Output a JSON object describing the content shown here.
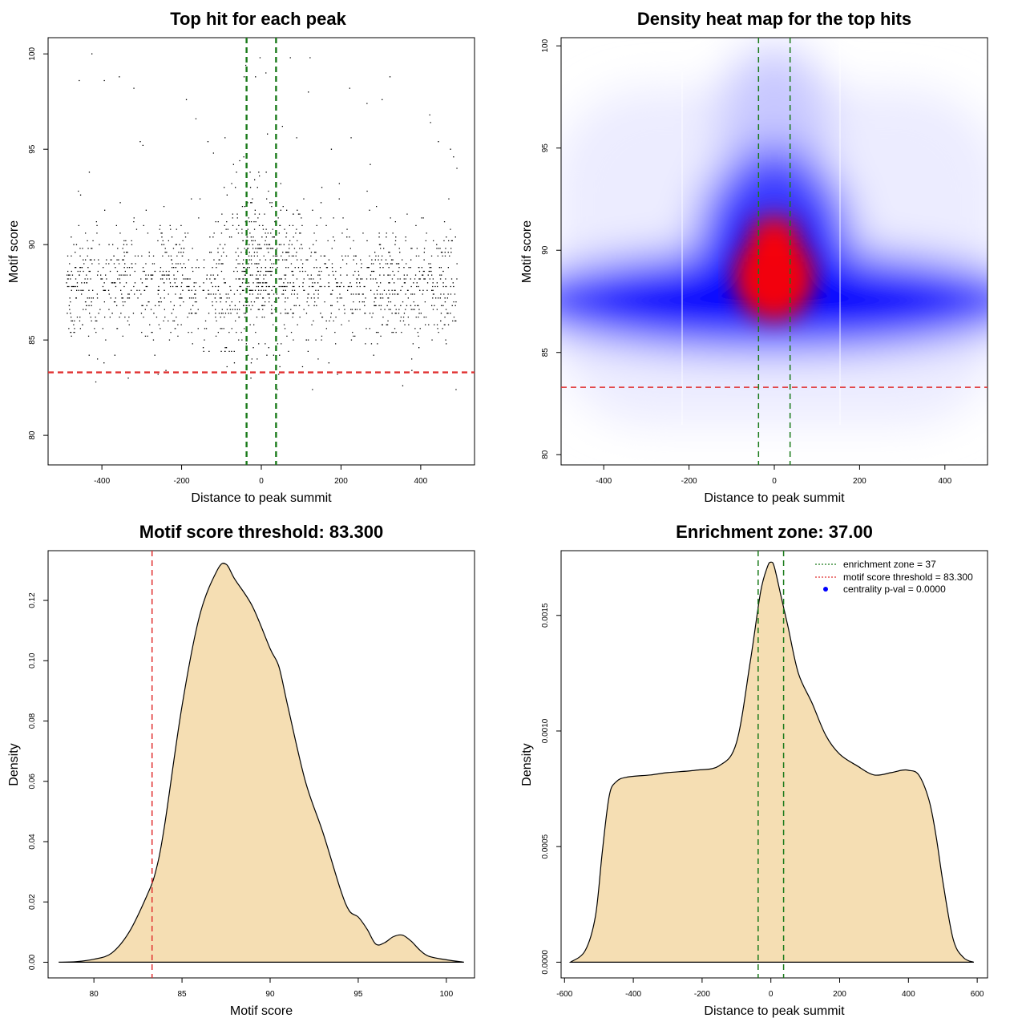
{
  "chart_data": [
    {
      "type": "scatter",
      "title": "Top hit for each peak",
      "xlabel": "Distance to peak summit",
      "ylabel": "Motif score",
      "xlim": [
        -535,
        535
      ],
      "ylim": [
        78.45,
        100.85
      ],
      "xticks": [
        -400,
        -200,
        0,
        200,
        400
      ],
      "xtick_labels": [
        "-400",
        "-200",
        "0",
        "200",
        "400"
      ],
      "yticks": [
        80,
        85,
        90,
        95,
        100
      ],
      "ytick_labels": [
        "80",
        "85",
        "90",
        "95",
        "100"
      ],
      "grid": false,
      "points_description_source": "dense uniform spread from -490 to 490, scores concentrated 85-92, denser near 0",
      "hlines": [
        {
          "y": 83.3,
          "color": "#e03030",
          "style": "dashed"
        }
      ],
      "vlines": [
        {
          "x": -37,
          "color": "#1a7a1a",
          "style": "dashed"
        },
        {
          "x": 37,
          "color": "#1a7a1a",
          "style": "dashed"
        }
      ],
      "marker_color": "#000000"
    },
    {
      "type": "heatmap",
      "title": "Density heat map for the top hits",
      "xlabel": "Distance to peak summit",
      "ylabel": "Motif score",
      "xlim": [
        -500,
        500
      ],
      "ylim": [
        79.5,
        100.4
      ],
      "xticks": [
        -400,
        -200,
        0,
        200,
        400
      ],
      "xtick_labels": [
        "-400",
        "-200",
        "0",
        "200",
        "400"
      ],
      "yticks": [
        80,
        85,
        90,
        95,
        100
      ],
      "ytick_labels": [
        "80",
        "85",
        "90",
        "95",
        "100"
      ],
      "color_scale": [
        "#ffffff",
        "#0000ff",
        "#ff0000"
      ],
      "density_peak": {
        "x": 0,
        "y": 88.5
      },
      "hlines": [
        {
          "y": 83.3,
          "color": "#e03030",
          "style": "dashed"
        }
      ],
      "vlines": [
        {
          "x": -37,
          "color": "#1a7a1a",
          "style": "dashed"
        },
        {
          "x": 37,
          "color": "#1a7a1a",
          "style": "dashed"
        }
      ]
    },
    {
      "type": "area",
      "title": "Motif score threshold: 83.300",
      "xlabel": "Motif score",
      "ylabel": "Density",
      "xlim": [
        77.4,
        101.6
      ],
      "ylim": [
        -0.0052,
        0.1365
      ],
      "xticks": [
        80,
        85,
        90,
        95,
        100
      ],
      "xtick_labels": [
        "80",
        "85",
        "90",
        "95",
        "100"
      ],
      "yticks": [
        0,
        0.02,
        0.04,
        0.06,
        0.08,
        0.1,
        0.12
      ],
      "ytick_labels": [
        "0.00",
        "0.02",
        "0.04",
        "0.06",
        "0.08",
        "0.10",
        "0.12"
      ],
      "fill": "#f5deb3",
      "x": [
        78.0,
        79.0,
        80.0,
        81.0,
        82.0,
        83.0,
        83.5,
        84.0,
        85.0,
        86.0,
        87.0,
        87.5,
        88.0,
        89.0,
        90.0,
        90.5,
        91.0,
        92.0,
        93.0,
        94.0,
        94.5,
        95.0,
        95.5,
        96.0,
        96.5,
        97.0,
        97.5,
        98.0,
        98.5,
        99.0,
        100.0,
        101.0
      ],
      "y": [
        0.0,
        0.0002,
        0.001,
        0.003,
        0.01,
        0.022,
        0.03,
        0.045,
        0.085,
        0.115,
        0.13,
        0.132,
        0.127,
        0.118,
        0.104,
        0.098,
        0.085,
        0.06,
        0.043,
        0.024,
        0.017,
        0.015,
        0.011,
        0.006,
        0.0065,
        0.0085,
        0.009,
        0.007,
        0.004,
        0.002,
        0.0008,
        0.0
      ],
      "vlines": [
        {
          "x": 83.3,
          "color": "#e03030",
          "style": "dashed"
        }
      ]
    },
    {
      "type": "area",
      "title": "Enrichment zone: 37.00",
      "xlabel": "Distance to peak summit",
      "ylabel": "Density",
      "xlim": [
        -610,
        630
      ],
      "ylim": [
        -6.8e-05,
        0.00178
      ],
      "xticks": [
        -600,
        -400,
        -200,
        0,
        200,
        400,
        600
      ],
      "xtick_labels": [
        "-600",
        "-400",
        "-200",
        "0",
        "200",
        "400",
        "600"
      ],
      "yticks": [
        0.0,
        0.0005,
        0.001,
        0.0015
      ],
      "ytick_labels": [
        "0.0000",
        "0.0005",
        "0.0010",
        "0.0015"
      ],
      "fill": "#f5deb3",
      "x": [
        -583,
        -540,
        -510,
        -490,
        -470,
        -450,
        -420,
        -350,
        -300,
        -220,
        -150,
        -100,
        -60,
        -30,
        -10,
        0,
        10,
        30,
        50,
        80,
        120,
        160,
        200,
        250,
        300,
        350,
        380,
        400,
        430,
        460,
        480,
        500,
        530,
        560,
        590
      ],
      "y": [
        0.0,
        5e-05,
        0.0002,
        0.00048,
        0.00072,
        0.00078,
        0.0008,
        0.00081,
        0.00082,
        0.00083,
        0.00085,
        0.00095,
        0.0013,
        0.0016,
        0.00171,
        0.00173,
        0.00171,
        0.00158,
        0.00145,
        0.00125,
        0.00112,
        0.00098,
        0.0009,
        0.00085,
        0.00081,
        0.00082,
        0.00083,
        0.00083,
        0.00081,
        0.0007,
        0.00055,
        0.00035,
        0.0001,
        2e-05,
        0.0
      ],
      "vlines": [
        {
          "x": -37,
          "color": "#1a7a1a",
          "style": "dashed"
        },
        {
          "x": 37,
          "color": "#1a7a1a",
          "style": "dashed"
        }
      ],
      "legend": {
        "position": "top-right",
        "items": [
          {
            "label": "enrichment zone = 37",
            "color": "#1a7a1a",
            "kind": "dotted-line"
          },
          {
            "label": "motif score threshold = 83.300",
            "color": "#e03030",
            "kind": "dotted-line"
          },
          {
            "label": "centrality p-val = 0.0000",
            "color": "#0000ff",
            "kind": "point"
          }
        ]
      }
    }
  ]
}
